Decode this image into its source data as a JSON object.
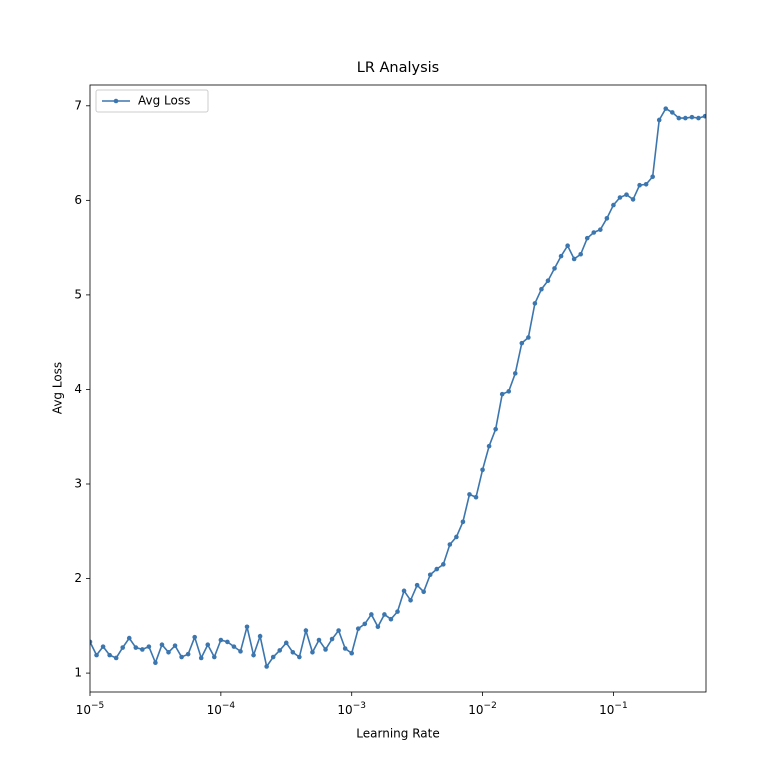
{
  "chart_data": {
    "type": "line",
    "title": "LR Analysis",
    "x_label": "Learning Rate",
    "y_label": "Avg Loss",
    "log_x": true,
    "grid": false,
    "legend": "upper left",
    "x": [
      1e-05,
      1.122e-05,
      1.259e-05,
      1.413e-05,
      1.585e-05,
      1.778e-05,
      1.995e-05,
      2.239e-05,
      2.512e-05,
      2.818e-05,
      3.162e-05,
      3.548e-05,
      3.981e-05,
      4.467e-05,
      5.012e-05,
      5.623e-05,
      6.31e-05,
      7.079e-05,
      7.943e-05,
      8.913e-05,
      0.0001,
      0.0001122,
      0.0001259,
      0.0001413,
      0.0001585,
      0.0001778,
      0.0001995,
      0.0002239,
      0.0002512,
      0.0002818,
      0.0003162,
      0.0003548,
      0.0003981,
      0.0004467,
      0.0005012,
      0.0005623,
      0.000631,
      0.0007079,
      0.0007943,
      0.0008913,
      0.001,
      0.001122,
      0.001259,
      0.001413,
      0.001585,
      0.001778,
      0.001995,
      0.002239,
      0.002512,
      0.002818,
      0.003162,
      0.003548,
      0.003981,
      0.004467,
      0.005012,
      0.005623,
      0.00631,
      0.007079,
      0.007943,
      0.008913,
      0.01,
      0.01122,
      0.01259,
      0.01413,
      0.01585,
      0.01778,
      0.01995,
      0.02239,
      0.02512,
      0.02818,
      0.03162,
      0.03548,
      0.03981,
      0.04467,
      0.05012,
      0.05623,
      0.0631,
      0.07079,
      0.07943,
      0.08913,
      0.1,
      0.1122,
      0.1259,
      0.1413,
      0.1585,
      0.1778,
      0.1995,
      0.2239,
      0.2512,
      0.2818,
      0.3162,
      0.3548,
      0.3981,
      0.4467,
      0.5012
    ],
    "series": [
      {
        "name": "Avg Loss",
        "color": "#3c76af",
        "values": [
          1.33,
          1.19,
          1.28,
          1.19,
          1.16,
          1.27,
          1.37,
          1.27,
          1.25,
          1.28,
          1.11,
          1.3,
          1.22,
          1.29,
          1.17,
          1.2,
          1.38,
          1.16,
          1.3,
          1.17,
          1.35,
          1.33,
          1.28,
          1.23,
          1.49,
          1.19,
          1.39,
          1.07,
          1.17,
          1.24,
          1.32,
          1.22,
          1.17,
          1.45,
          1.22,
          1.35,
          1.25,
          1.36,
          1.45,
          1.26,
          1.21,
          1.47,
          1.52,
          1.62,
          1.49,
          1.62,
          1.57,
          1.65,
          1.87,
          1.77,
          1.93,
          1.86,
          2.04,
          2.1,
          2.15,
          2.36,
          2.44,
          2.6,
          2.89,
          2.86,
          3.15,
          3.4,
          3.58,
          3.95,
          3.98,
          4.17,
          4.49,
          4.55,
          4.91,
          5.06,
          5.15,
          5.28,
          5.41,
          5.52,
          5.38,
          5.43,
          5.6,
          5.66,
          5.69,
          5.81,
          5.95,
          6.03,
          6.06,
          6.01,
          6.16,
          6.17,
          6.25,
          6.85,
          6.97,
          6.93,
          6.87,
          6.87,
          6.88,
          6.87,
          6.89
        ]
      }
    ],
    "xlim": [
      1e-05,
      0.51
    ],
    "xticks": [
      {
        "value": 1e-05,
        "label": "10",
        "exponent": "−5"
      },
      {
        "value": 0.0001,
        "label": "10",
        "exponent": "−4"
      },
      {
        "value": 0.001,
        "label": "10",
        "exponent": "−3"
      },
      {
        "value": 0.01,
        "label": "10",
        "exponent": "−2"
      },
      {
        "value": 0.1,
        "label": "10",
        "exponent": "−1"
      }
    ],
    "ylim": [
      0.8,
      7.22
    ],
    "yticks": [
      1,
      2,
      3,
      4,
      5,
      6,
      7
    ]
  }
}
